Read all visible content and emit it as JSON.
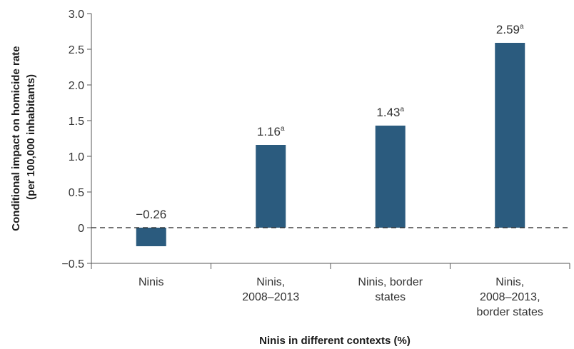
{
  "chart_data": {
    "type": "bar",
    "categories": [
      [
        "Ninis"
      ],
      [
        "Ninis,",
        "2008–2013"
      ],
      [
        "Ninis, border",
        "states"
      ],
      [
        "Ninis,",
        "2008–2013,",
        "border states"
      ]
    ],
    "values": [
      -0.26,
      1.16,
      1.43,
      2.59
    ],
    "data_labels": [
      "−0.26",
      "1.16",
      "1.43",
      "2.59"
    ],
    "label_superscripts": [
      "",
      "a",
      "a",
      "a"
    ],
    "y_ticks": [
      "3.0",
      "2.5",
      "2.0",
      "1.5",
      "1.0",
      "0.5",
      "0",
      "−0.5"
    ],
    "y_tick_values": [
      3.0,
      2.5,
      2.0,
      1.5,
      1.0,
      0.5,
      0,
      -0.5
    ],
    "ylim": [
      -0.5,
      3.0
    ],
    "ylabel_line1": "Conditional impact on homicide rate",
    "ylabel_line2": "(per 100,000 inhabitants)",
    "xlabel": "Ninis in different contexts (%)",
    "zero_line": "dashed",
    "grid": false,
    "bar_color": "#2b5b7e",
    "axis_color": "#555555"
  }
}
